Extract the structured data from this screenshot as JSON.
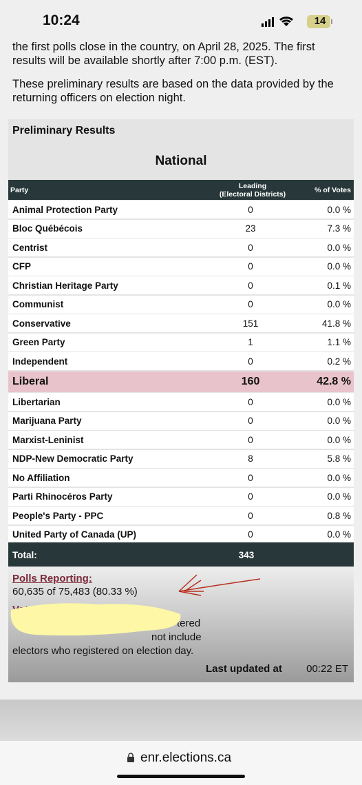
{
  "status_bar": {
    "time": "10:24",
    "battery": "14"
  },
  "intro": [
    "the first polls close in the country, on April 28, 2025. The first results will be available shortly after 7:00 p.m. (EST).",
    "These preliminary results are based on the data provided by the returning officers on election night."
  ],
  "results": {
    "title": "Preliminary Results",
    "region": "National",
    "columns": [
      "Party",
      [
        "Leading",
        "(Electoral Districts)"
      ],
      "% of Votes"
    ],
    "rows": [
      {
        "party": "Animal Protection Party",
        "leading": "0",
        "votes": "0.0 %"
      },
      {
        "party": "Bloc Québécois",
        "leading": "23",
        "votes": "7.3 %"
      },
      {
        "party": "Centrist",
        "leading": "0",
        "votes": "0.0 %"
      },
      {
        "party": "CFP",
        "leading": "0",
        "votes": "0.0 %"
      },
      {
        "party": "Christian Heritage Party",
        "leading": "0",
        "votes": "0.1 %"
      },
      {
        "party": "Communist",
        "leading": "0",
        "votes": "0.0 %"
      },
      {
        "party": "Conservative",
        "leading": "151",
        "votes": "41.8 %"
      },
      {
        "party": "Green Party",
        "leading": "1",
        "votes": "1.1 %"
      },
      {
        "party": "Independent",
        "leading": "0",
        "votes": "0.2 %"
      },
      {
        "party": "Liberal",
        "leading": "160",
        "votes": "42.8 %",
        "highlight": true
      },
      {
        "party": "Libertarian",
        "leading": "0",
        "votes": "0.0 %"
      },
      {
        "party": "Marijuana Party",
        "leading": "0",
        "votes": "0.0 %"
      },
      {
        "party": "Marxist-Leninist",
        "leading": "0",
        "votes": "0.0 %"
      },
      {
        "party": "NDP-New Democratic Party",
        "leading": "8",
        "votes": "5.8 %"
      },
      {
        "party": "No Affiliation",
        "leading": "0",
        "votes": "0.0 %"
      },
      {
        "party": "Parti Rhinocéros Party",
        "leading": "0",
        "votes": "0.0 %"
      },
      {
        "party": "People's Party - PPC",
        "leading": "0",
        "votes": "0.8 %"
      },
      {
        "party": "United Party of Canada (UP)",
        "leading": "0",
        "votes": "0.0 %"
      }
    ],
    "total": {
      "label": "Total:",
      "leading": "343"
    },
    "polls_reporting": {
      "label": "Polls Reporting:",
      "value": "60,635 of 75,483 (80.33 %)"
    },
    "voter_turnout": {
      "label": "Voter Turnout:",
      "lines": [
        "tered",
        "not include",
        "electors who registered on election day."
      ]
    },
    "last_updated": {
      "label": "Last updated at",
      "time": "00:22 ET"
    }
  },
  "url": "enr.elections.ca"
}
